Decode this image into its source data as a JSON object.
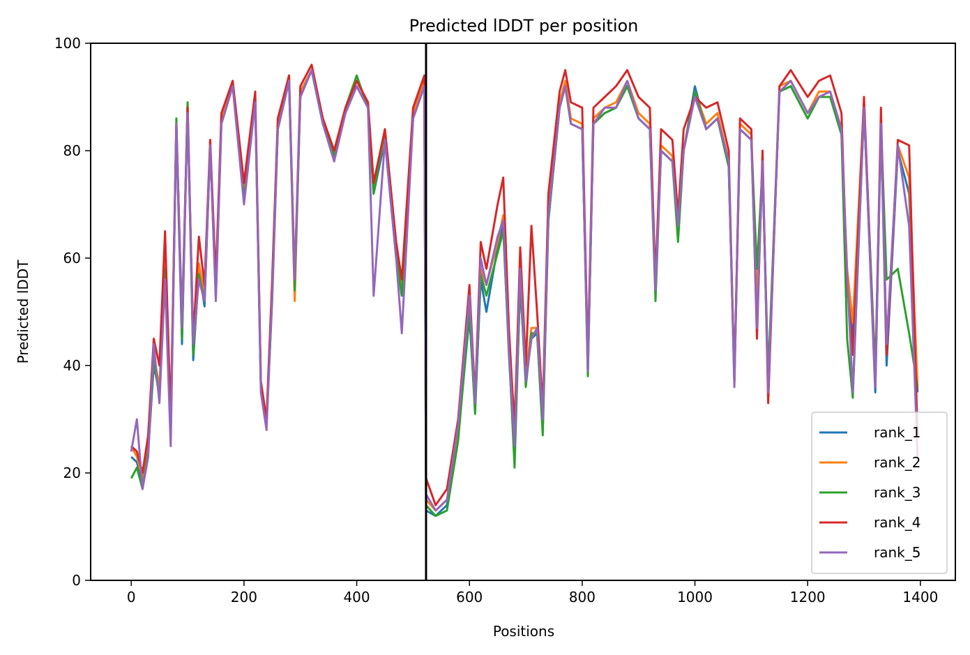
{
  "chart_data": {
    "type": "line",
    "title": "Predicted lDDT per position",
    "xlabel": "Positions",
    "ylabel": "Predicted lDDT",
    "xlim": [
      -72,
      1462
    ],
    "ylim": [
      0,
      100
    ],
    "xticks": [
      0,
      200,
      400,
      600,
      800,
      1000,
      1200,
      1400
    ],
    "yticks": [
      0,
      20,
      40,
      60,
      80,
      100
    ],
    "grid": false,
    "legend_position": "lower right",
    "vline_x": 523,
    "colors": {
      "vline": "#000000"
    },
    "series": [
      {
        "name": "rank_1",
        "color": "#1f77b4",
        "x": [
          0,
          10,
          20,
          30,
          40,
          50,
          60,
          70,
          80,
          90,
          100,
          110,
          120,
          130,
          140,
          150,
          160,
          180,
          200,
          220,
          230,
          240,
          250,
          260,
          280,
          290,
          300,
          320,
          340,
          360,
          380,
          400,
          420,
          430,
          450,
          470,
          480,
          500,
          520,
          523,
          540,
          560,
          580,
          600,
          610,
          620,
          630,
          650,
          660,
          670,
          680,
          690,
          700,
          710,
          720,
          730,
          740,
          760,
          770,
          780,
          800,
          810,
          820,
          840,
          860,
          880,
          900,
          920,
          930,
          940,
          960,
          970,
          980,
          1000,
          1020,
          1040,
          1060,
          1070,
          1080,
          1100,
          1110,
          1120,
          1130,
          1150,
          1170,
          1200,
          1220,
          1240,
          1260,
          1270,
          1280,
          1300,
          1320,
          1330,
          1340,
          1360,
          1380,
          1395
        ],
        "values": [
          23,
          22,
          18,
          24,
          40,
          35,
          59,
          28,
          84,
          44,
          88,
          41,
          58,
          51,
          81,
          53,
          86,
          92,
          73,
          89,
          36,
          29,
          54,
          84,
          93,
          55,
          90,
          95,
          85,
          79,
          87,
          92,
          88,
          72,
          82,
          60,
          53,
          86,
          92,
          13,
          12,
          14,
          27,
          49,
          32,
          56,
          50,
          62,
          66,
          42,
          24,
          55,
          37,
          45,
          46,
          29,
          67,
          88,
          92,
          85,
          84,
          39,
          85,
          87,
          88,
          92,
          86,
          84,
          55,
          80,
          78,
          65,
          80,
          92,
          84,
          86,
          77,
          38,
          84,
          82,
          50,
          77,
          36,
          91,
          92,
          86,
          90,
          90,
          83,
          55,
          45,
          88,
          35,
          85,
          40,
          80,
          72,
          35
        ]
      },
      {
        "name": "rank_2",
        "color": "#ff7f0e",
        "x": [
          0,
          10,
          20,
          30,
          40,
          50,
          60,
          70,
          80,
          90,
          100,
          110,
          120,
          130,
          140,
          150,
          160,
          180,
          200,
          220,
          230,
          240,
          250,
          260,
          280,
          290,
          300,
          320,
          340,
          360,
          380,
          400,
          420,
          430,
          450,
          470,
          480,
          500,
          520,
          523,
          540,
          560,
          580,
          600,
          610,
          620,
          630,
          650,
          660,
          670,
          680,
          690,
          700,
          710,
          720,
          730,
          740,
          760,
          770,
          780,
          800,
          810,
          820,
          840,
          860,
          880,
          900,
          920,
          930,
          940,
          960,
          970,
          980,
          1000,
          1020,
          1040,
          1060,
          1070,
          1080,
          1100,
          1110,
          1120,
          1130,
          1150,
          1170,
          1200,
          1220,
          1240,
          1260,
          1270,
          1280,
          1300,
          1320,
          1330,
          1340,
          1360,
          1380,
          1395
        ],
        "values": [
          25,
          23,
          19,
          25,
          42,
          36,
          60,
          29,
          85,
          46,
          89,
          43,
          59,
          53,
          82,
          54,
          86,
          93,
          72,
          90,
          37,
          30,
          55,
          85,
          94,
          52,
          91,
          95,
          86,
          80,
          88,
          93,
          89,
          73,
          83,
          62,
          54,
          87,
          93,
          15,
          13,
          15,
          28,
          52,
          33,
          58,
          55,
          63,
          68,
          44,
          30,
          57,
          38,
          47,
          47,
          28,
          68,
          89,
          93,
          86,
          85,
          40,
          86,
          88,
          89,
          93,
          87,
          85,
          55,
          81,
          79,
          66,
          80,
          91,
          85,
          87,
          78,
          37,
          85,
          83,
          52,
          78,
          37,
          92,
          93,
          87,
          91,
          91,
          84,
          58,
          48,
          89,
          37,
          86,
          42,
          81,
          75,
          36
        ]
      },
      {
        "name": "rank_3",
        "color": "#2ca02c",
        "x": [
          0,
          10,
          20,
          30,
          40,
          50,
          60,
          70,
          80,
          90,
          100,
          110,
          120,
          130,
          140,
          150,
          160,
          180,
          200,
          220,
          230,
          240,
          250,
          260,
          280,
          290,
          300,
          320,
          340,
          360,
          380,
          400,
          420,
          430,
          450,
          470,
          480,
          500,
          520,
          523,
          540,
          560,
          580,
          600,
          610,
          620,
          630,
          650,
          660,
          670,
          680,
          690,
          700,
          710,
          720,
          730,
          740,
          760,
          770,
          780,
          800,
          810,
          820,
          840,
          860,
          880,
          900,
          920,
          930,
          940,
          960,
          970,
          980,
          1000,
          1020,
          1040,
          1060,
          1070,
          1080,
          1100,
          1110,
          1120,
          1130,
          1150,
          1170,
          1200,
          1220,
          1240,
          1260,
          1270,
          1280,
          1300,
          1320,
          1330,
          1340,
          1360,
          1380,
          1395
        ],
        "values": [
          19,
          21,
          17,
          24,
          41,
          34,
          58,
          27,
          86,
          45,
          89,
          42,
          57,
          52,
          81,
          53,
          85,
          92,
          71,
          89,
          36,
          29,
          52,
          84,
          93,
          54,
          90,
          95,
          85,
          79,
          88,
          94,
          88,
          72,
          84,
          61,
          53,
          86,
          92,
          14,
          12,
          13,
          26,
          50,
          31,
          57,
          53,
          61,
          65,
          43,
          21,
          56,
          36,
          46,
          46,
          27,
          67,
          88,
          92,
          85,
          84,
          38,
          85,
          87,
          88,
          92,
          86,
          84,
          52,
          80,
          78,
          63,
          80,
          91,
          84,
          86,
          77,
          37,
          84,
          82,
          58,
          77,
          38,
          91,
          92,
          86,
          90,
          90,
          83,
          45,
          34,
          88,
          39,
          85,
          56,
          58,
          46,
          36
        ]
      },
      {
        "name": "rank_4",
        "color": "#d62728",
        "x": [
          0,
          10,
          20,
          30,
          40,
          50,
          60,
          70,
          80,
          90,
          100,
          110,
          120,
          130,
          140,
          150,
          160,
          180,
          200,
          220,
          230,
          240,
          250,
          260,
          280,
          290,
          300,
          320,
          340,
          360,
          380,
          400,
          420,
          430,
          450,
          470,
          480,
          500,
          520,
          523,
          540,
          560,
          580,
          600,
          610,
          620,
          630,
          650,
          660,
          670,
          680,
          690,
          700,
          710,
          720,
          730,
          740,
          760,
          770,
          780,
          800,
          810,
          820,
          840,
          860,
          880,
          900,
          920,
          930,
          940,
          960,
          970,
          980,
          1000,
          1020,
          1040,
          1060,
          1070,
          1080,
          1100,
          1110,
          1120,
          1130,
          1150,
          1170,
          1200,
          1220,
          1240,
          1260,
          1270,
          1280,
          1300,
          1320,
          1330,
          1340,
          1360,
          1380,
          1395
        ],
        "values": [
          25,
          24,
          20,
          27,
          45,
          40,
          65,
          30,
          85,
          48,
          88,
          45,
          64,
          55,
          82,
          56,
          87,
          93,
          74,
          91,
          37,
          30,
          56,
          86,
          94,
          56,
          92,
          96,
          86,
          80,
          88,
          93,
          89,
          74,
          84,
          63,
          56,
          88,
          94,
          19,
          14,
          17,
          30,
          55,
          34,
          63,
          58,
          70,
          75,
          47,
          28,
          62,
          40,
          66,
          50,
          32,
          72,
          91,
          95,
          89,
          88,
          41,
          88,
          90,
          92,
          95,
          90,
          88,
          56,
          84,
          82,
          68,
          84,
          90,
          88,
          89,
          80,
          37,
          86,
          84,
          45,
          80,
          33,
          92,
          95,
          90,
          93,
          94,
          87,
          55,
          42,
          90,
          36,
          88,
          42,
          82,
          81,
          27
        ]
      },
      {
        "name": "rank_5",
        "color": "#9467bd",
        "x": [
          0,
          10,
          20,
          30,
          40,
          50,
          60,
          70,
          80,
          90,
          100,
          110,
          120,
          130,
          140,
          150,
          160,
          180,
          200,
          220,
          230,
          240,
          250,
          260,
          280,
          290,
          300,
          320,
          340,
          360,
          380,
          400,
          420,
          430,
          450,
          470,
          480,
          500,
          520,
          523,
          540,
          560,
          580,
          600,
          610,
          620,
          630,
          650,
          660,
          670,
          680,
          690,
          700,
          710,
          720,
          730,
          740,
          760,
          770,
          780,
          800,
          810,
          820,
          840,
          860,
          880,
          900,
          920,
          930,
          940,
          960,
          970,
          980,
          1000,
          1020,
          1040,
          1060,
          1070,
          1080,
          1100,
          1110,
          1120,
          1130,
          1150,
          1170,
          1200,
          1220,
          1240,
          1260,
          1270,
          1280,
          1300,
          1320,
          1330,
          1340,
          1360,
          1380,
          1395
        ],
        "values": [
          24,
          30,
          17,
          23,
          44,
          33,
          56,
          25,
          85,
          47,
          87,
          44,
          56,
          52,
          81,
          52,
          85,
          92,
          70,
          89,
          35,
          28,
          53,
          84,
          93,
          56,
          90,
          95,
          85,
          78,
          87,
          92,
          88,
          53,
          82,
          60,
          46,
          86,
          92,
          16,
          13,
          15,
          29,
          53,
          33,
          60,
          55,
          64,
          67,
          43,
          25,
          58,
          37,
          45,
          47,
          30,
          68,
          88,
          92,
          85,
          84,
          39,
          85,
          88,
          88,
          93,
          86,
          84,
          54,
          80,
          78,
          66,
          80,
          90,
          84,
          86,
          78,
          36,
          84,
          82,
          47,
          78,
          35,
          91,
          93,
          87,
          90,
          91,
          84,
          57,
          35,
          88,
          36,
          85,
          44,
          81,
          66,
          23
        ]
      }
    ]
  }
}
